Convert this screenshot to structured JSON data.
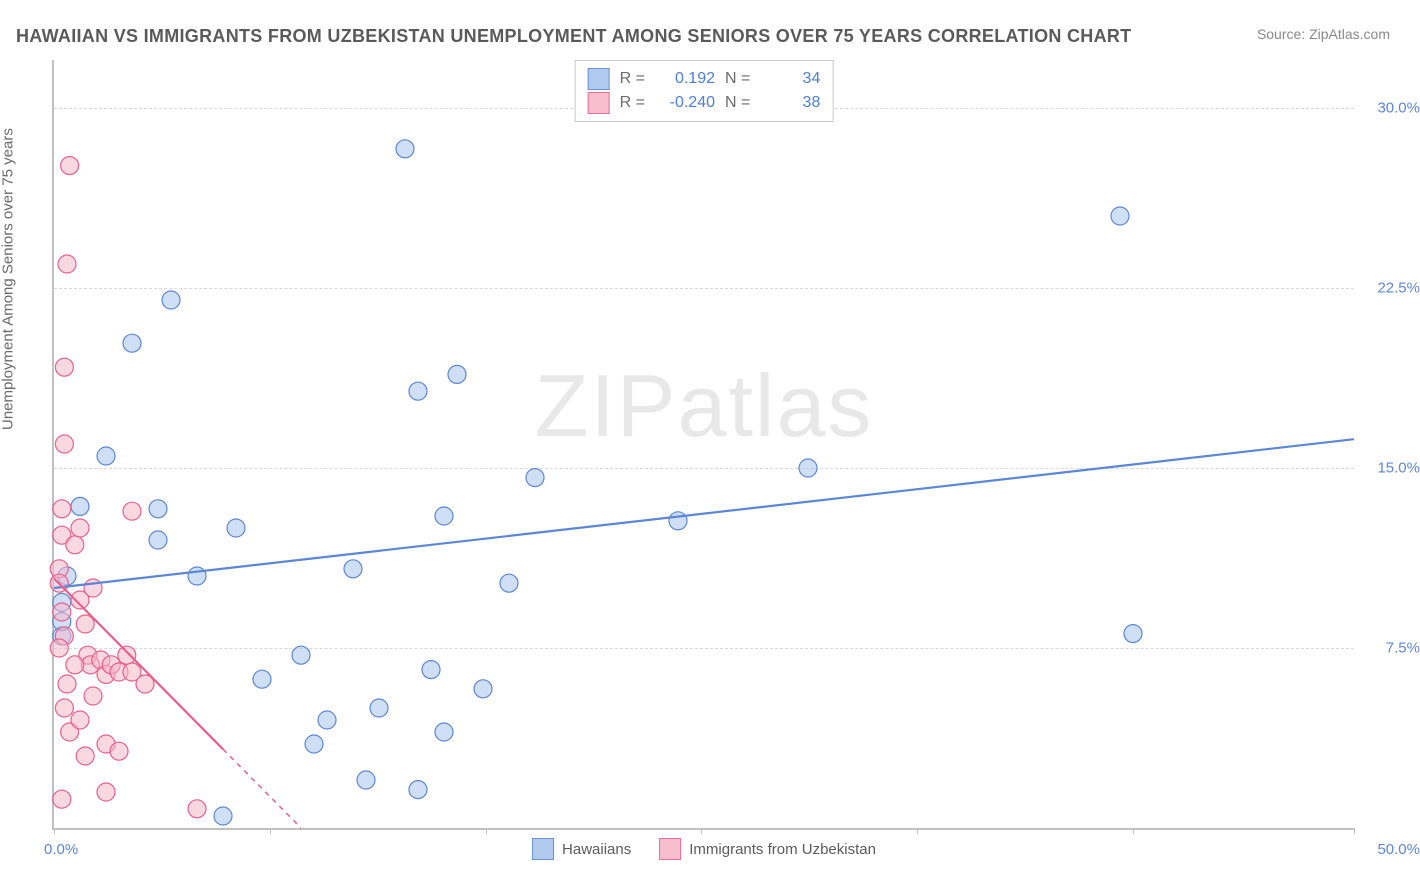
{
  "title": "HAWAIIAN VS IMMIGRANTS FROM UZBEKISTAN UNEMPLOYMENT AMONG SENIORS OVER 75 YEARS CORRELATION CHART",
  "source": "Source: ZipAtlas.com",
  "ylabel": "Unemployment Among Seniors over 75 years",
  "watermark_a": "ZIP",
  "watermark_b": "atlas",
  "chart": {
    "type": "scatter",
    "background_color": "#ffffff",
    "grid_color": "#d8d8d8",
    "axis_color": "#c0c0c0",
    "xlim": [
      0,
      50
    ],
    "ylim": [
      0,
      32
    ],
    "xtick_positions": [
      0,
      8.3,
      16.6,
      24.9,
      33.2,
      41.5,
      50
    ],
    "xtick_labels": {
      "0": "0.0%",
      "50": "50.0%"
    },
    "ytick_positions": [
      7.5,
      15.0,
      22.5,
      30.0
    ],
    "ytick_labels": [
      "7.5%",
      "15.0%",
      "22.5%",
      "30.0%"
    ],
    "marker_radius": 9,
    "marker_stroke_width": 1.2,
    "trend_line_width": 2.2,
    "title_fontsize": 18,
    "label_fontsize": 15,
    "tick_label_color": "#5b87d6",
    "series": [
      {
        "name": "Hawaiians",
        "fill_color": "#a8c5ec",
        "stroke_color": "#5b87d6",
        "fill_opacity": 0.55,
        "R_label": "R =",
        "R": "0.192",
        "N_label": "N =",
        "N": "34",
        "trend": {
          "x1": 0,
          "y1": 10.0,
          "x2": 50,
          "y2": 16.2
        },
        "points": [
          [
            0.3,
            8.0
          ],
          [
            0.3,
            8.6
          ],
          [
            0.3,
            9.4
          ],
          [
            0.5,
            10.5
          ],
          [
            1.0,
            13.4
          ],
          [
            2.0,
            15.5
          ],
          [
            3.0,
            20.2
          ],
          [
            4.5,
            22.0
          ],
          [
            4.0,
            13.3
          ],
          [
            4.0,
            12.0
          ],
          [
            7.0,
            12.5
          ],
          [
            5.5,
            10.5
          ],
          [
            6.5,
            0.5
          ],
          [
            8.0,
            6.2
          ],
          [
            9.5,
            7.2
          ],
          [
            10.5,
            4.5
          ],
          [
            10.0,
            3.5
          ],
          [
            11.5,
            10.8
          ],
          [
            12.0,
            2.0
          ],
          [
            12.5,
            5.0
          ],
          [
            13.5,
            28.3
          ],
          [
            14.0,
            1.6
          ],
          [
            14.0,
            18.2
          ],
          [
            14.5,
            6.6
          ],
          [
            15.0,
            13.0
          ],
          [
            15.5,
            18.9
          ],
          [
            16.5,
            5.8
          ],
          [
            17.5,
            10.2
          ],
          [
            18.5,
            14.6
          ],
          [
            24.0,
            12.8
          ],
          [
            29.0,
            15.0
          ],
          [
            41.0,
            25.5
          ],
          [
            41.5,
            8.1
          ],
          [
            15.0,
            4.0
          ]
        ]
      },
      {
        "name": "Immigrants from Uzbekistan",
        "fill_color": "#f6b8ca",
        "stroke_color": "#e85f8b",
        "fill_opacity": 0.55,
        "R_label": "R =",
        "R": "-0.240",
        "N_label": "N =",
        "N": "38",
        "trend": {
          "x1": 0,
          "y1": 10.4,
          "x2": 9.5,
          "y2": 0
        },
        "trend_dash_after_x": 6.5,
        "points": [
          [
            0.2,
            10.8
          ],
          [
            0.2,
            10.2
          ],
          [
            0.3,
            13.3
          ],
          [
            0.3,
            12.2
          ],
          [
            0.4,
            16.0
          ],
          [
            0.4,
            19.2
          ],
          [
            0.5,
            23.5
          ],
          [
            0.6,
            27.6
          ],
          [
            0.3,
            9.0
          ],
          [
            0.4,
            8.0
          ],
          [
            0.8,
            11.8
          ],
          [
            1.0,
            12.5
          ],
          [
            1.0,
            9.5
          ],
          [
            1.2,
            8.5
          ],
          [
            1.3,
            7.2
          ],
          [
            1.4,
            6.8
          ],
          [
            1.5,
            10.0
          ],
          [
            1.8,
            7.0
          ],
          [
            2.0,
            6.4
          ],
          [
            2.0,
            3.5
          ],
          [
            2.2,
            6.8
          ],
          [
            2.5,
            3.2
          ],
          [
            2.5,
            6.5
          ],
          [
            2.8,
            7.2
          ],
          [
            3.0,
            13.2
          ],
          [
            3.0,
            6.5
          ],
          [
            3.5,
            6.0
          ],
          [
            5.5,
            0.8
          ],
          [
            0.3,
            1.2
          ],
          [
            0.6,
            4.0
          ],
          [
            1.0,
            4.5
          ],
          [
            1.2,
            3.0
          ],
          [
            1.5,
            5.5
          ],
          [
            2.0,
            1.5
          ],
          [
            0.5,
            6.0
          ],
          [
            0.8,
            6.8
          ],
          [
            0.2,
            7.5
          ],
          [
            0.4,
            5.0
          ]
        ]
      }
    ]
  },
  "legend_bottom": {
    "items": [
      {
        "swatch_fill": "#a8c5ec",
        "swatch_stroke": "#5b87d6",
        "label": "Hawaiians"
      },
      {
        "swatch_fill": "#f6b8ca",
        "swatch_stroke": "#e85f8b",
        "label": "Immigrants from Uzbekistan"
      }
    ]
  }
}
